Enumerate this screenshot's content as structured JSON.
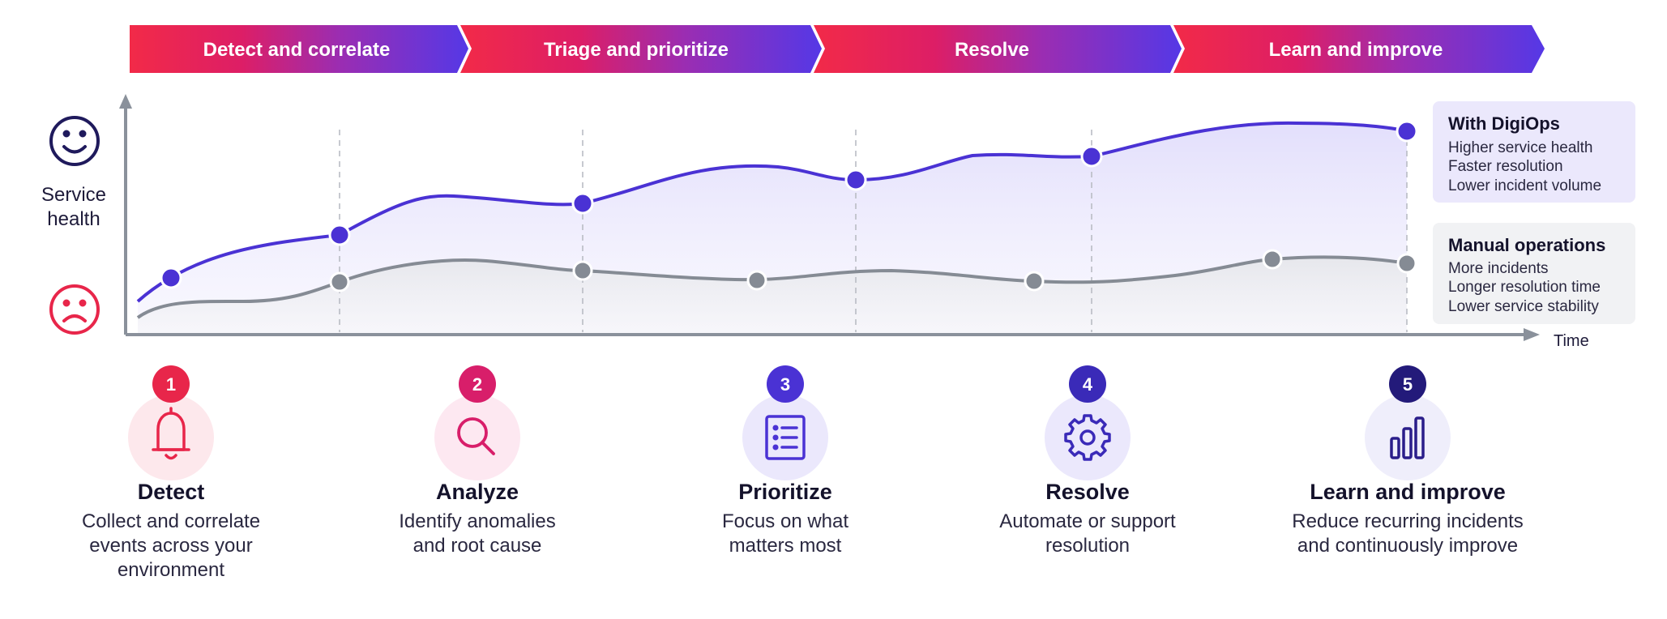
{
  "phases": [
    {
      "label": "Detect and correlate"
    },
    {
      "label": "Triage and prioritize"
    },
    {
      "label": "Resolve"
    },
    {
      "label": "Learn and improve"
    }
  ],
  "chart": {
    "y_axis_label_line1": "Service",
    "y_axis_label_line2": "health",
    "x_axis_label": "Time"
  },
  "legend": {
    "with": {
      "title": "With DigiOps",
      "items": [
        "Higher service health",
        "Faster resolution",
        "Lower incident volume"
      ]
    },
    "manual": {
      "title": "Manual operations",
      "items": [
        "More incidents",
        "Longer resolution time",
        "Lower service stability"
      ]
    }
  },
  "steps": [
    {
      "number": "1",
      "title": "Detect",
      "lines": [
        "Collect and correlate",
        "events across your",
        "environment"
      ],
      "icon": "bell-icon"
    },
    {
      "number": "2",
      "title": "Analyze",
      "lines": [
        "Identify anomalies",
        "and root cause"
      ],
      "icon": "magnifier-icon"
    },
    {
      "number": "3",
      "title": "Prioritize",
      "lines": [
        "Focus on what",
        "matters most"
      ],
      "icon": "checklist-icon"
    },
    {
      "number": "4",
      "title": "Resolve",
      "lines": [
        "Automate or support",
        "resolution"
      ],
      "icon": "gear-icon"
    },
    {
      "number": "5",
      "title": "Learn and improve",
      "lines": [
        "Reduce recurring incidents",
        "and continuously improve"
      ],
      "icon": "bar-chart-icon"
    }
  ],
  "colors": {
    "phase_1": "#ee2a4f",
    "phase_2": "#d81e6a",
    "phase_3": "#9a2fb0",
    "phase_4": "#5a36e0",
    "with_line": "#4a32d4",
    "manual_line": "#858b94",
    "happy_face": "#1f1a5c",
    "sad_face": "#e8264a",
    "axis": "#8a919b"
  }
}
